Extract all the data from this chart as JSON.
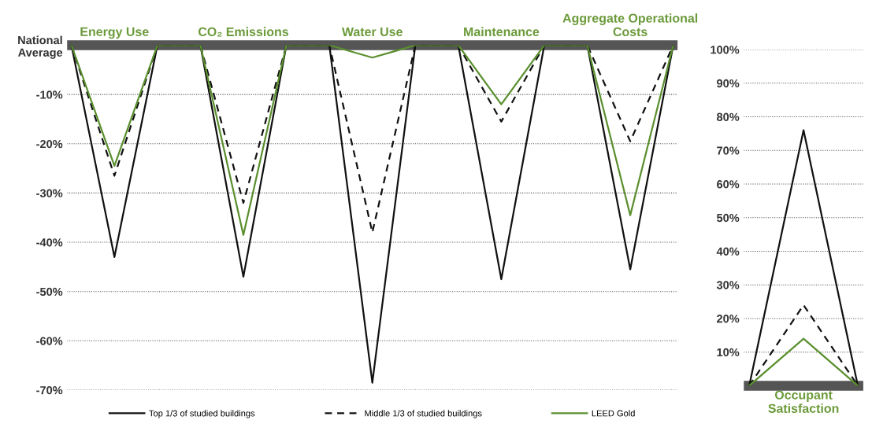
{
  "chart_data": [
    {
      "type": "line",
      "categories": [
        null,
        "Energy Use",
        null,
        null,
        "CO₂ Emissions",
        null,
        null,
        "Water Use",
        null,
        null,
        "Maintenance",
        null,
        null,
        "Aggregate Operational\nCosts",
        null
      ],
      "series": [
        {
          "name": "Top 1/3 of studied buildings",
          "color": "#111111",
          "line_style": "solid",
          "values": [
            0,
            -43,
            0,
            0,
            -47,
            0,
            0,
            -68.5,
            0,
            0,
            -47.5,
            0,
            0,
            -45.5,
            0
          ]
        },
        {
          "name": "Middle 1/3 of studied buildings",
          "color": "#111111",
          "line_style": "dashed",
          "values": [
            0,
            -26.5,
            0,
            0,
            -32,
            0,
            0,
            -38,
            0,
            0,
            -15.5,
            0,
            0,
            -19.5,
            0
          ]
        },
        {
          "name": "LEED Gold",
          "color": "#5a8f2e",
          "line_style": "solid",
          "values": [
            0,
            -24.5,
            0,
            0,
            -38.5,
            0,
            0,
            -2.5,
            0,
            0,
            -12,
            0,
            0,
            -34.5,
            0
          ]
        }
      ],
      "ylim": [
        -70,
        0
      ],
      "yticks": [
        {
          "value": 0,
          "label": "National\nAverage"
        },
        {
          "value": -10,
          "label": "-10%"
        },
        {
          "value": -20,
          "label": "-20%"
        },
        {
          "value": -30,
          "label": "-30%"
        },
        {
          "value": -40,
          "label": "-40%"
        },
        {
          "value": -50,
          "label": "-50%"
        },
        {
          "value": -60,
          "label": "-60%"
        },
        {
          "value": -70,
          "label": "-70%"
        }
      ],
      "grid": "y",
      "legend": "bottom"
    },
    {
      "type": "line",
      "categories": [
        null,
        null,
        null
      ],
      "xlabel": "Occupant\nSatisfaction",
      "series": [
        {
          "color": "#111111",
          "line_style": "solid",
          "values": [
            0,
            76,
            0
          ]
        },
        {
          "color": "#111111",
          "line_style": "dashed",
          "values": [
            0,
            24,
            0
          ]
        },
        {
          "color": "#5a8f2e",
          "line_style": "solid",
          "values": [
            0,
            14,
            0
          ]
        }
      ],
      "ylim": [
        0,
        100
      ],
      "yticks": [
        {
          "value": 10,
          "label": "10%"
        },
        {
          "value": 20,
          "label": "20%"
        },
        {
          "value": 30,
          "label": "30%"
        },
        {
          "value": 40,
          "label": "40%"
        },
        {
          "value": 50,
          "label": "50%"
        },
        {
          "value": 60,
          "label": "60%"
        },
        {
          "value": 70,
          "label": "70%"
        },
        {
          "value": 80,
          "label": "80%"
        },
        {
          "value": 90,
          "label": "90%"
        },
        {
          "value": 100,
          "label": "100%"
        }
      ],
      "grid": "y"
    }
  ]
}
